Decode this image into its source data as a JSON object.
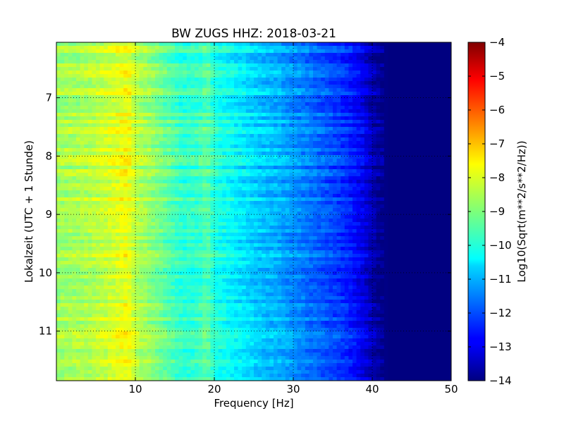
{
  "chart_data": {
    "type": "heatmap",
    "title": "BW ZUGS HHZ: 2018-03-21",
    "xlabel": "Frequency [Hz]",
    "ylabel": "Lokalzeit (UTC + 1 Stunde)",
    "xlim": [
      0,
      50
    ],
    "ylim": [
      11.85,
      6.05
    ],
    "x_ticks": [
      10,
      20,
      30,
      40,
      50
    ],
    "x_tick_labels": [
      "10",
      "20",
      "30",
      "40",
      "50"
    ],
    "y_ticks": [
      7,
      8,
      9,
      10,
      11
    ],
    "y_tick_labels": [
      "7",
      "8",
      "9",
      "10",
      "11"
    ],
    "grid": true,
    "colormap": "jet",
    "colorbar": {
      "label": "Log10(Sqrt(m**2/s**2/Hz))",
      "range": [
        -14,
        -4
      ],
      "ticks": [
        -4,
        -5,
        -6,
        -7,
        -8,
        -9,
        -10,
        -11,
        -12,
        -13,
        -14
      ],
      "tick_labels": [
        "−4",
        "−5",
        "−6",
        "−7",
        "−8",
        "−9",
        "−10",
        "−11",
        "−12",
        "−13",
        "−14"
      ]
    },
    "spectral_profile": {
      "frequency_hz": [
        0,
        2,
        4,
        6,
        8,
        9,
        10,
        12,
        14,
        16,
        18,
        19,
        20,
        22,
        24,
        26,
        28,
        30,
        32,
        34,
        36,
        37,
        38,
        39,
        40,
        41,
        42,
        50
      ],
      "level": [
        -8.7,
        -8.6,
        -8.5,
        -8.3,
        -8.0,
        -7.8,
        -8.4,
        -8.8,
        -9.3,
        -9.8,
        -9.7,
        -9.3,
        -9.9,
        -10.2,
        -10.5,
        -10.8,
        -11.0,
        -11.3,
        -11.6,
        -11.9,
        -12.2,
        -12.4,
        -12.7,
        -13.0,
        -13.5,
        -13.8,
        -14.0,
        -14.0
      ]
    }
  }
}
